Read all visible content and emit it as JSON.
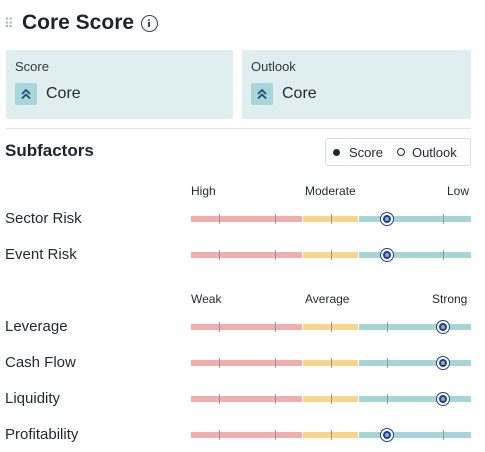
{
  "header": {
    "title": "Core Score"
  },
  "cards": {
    "score": {
      "label": "Score",
      "value": "Core",
      "icon": "double-chevron-up-icon"
    },
    "outlook": {
      "label": "Outlook",
      "value": "Core",
      "icon": "double-chevron-up-icon"
    }
  },
  "subfactors": {
    "title": "Subfactors",
    "legend": {
      "score": "Score",
      "outlook": "Outlook"
    },
    "risk_scale": {
      "left": "High",
      "middle": "Moderate",
      "right": "Low"
    },
    "strength_scale": {
      "left": "Weak",
      "middle": "Average",
      "right": "Strong"
    },
    "risk_rows": [
      {
        "label": "Sector Risk",
        "position": 0.7
      },
      {
        "label": "Event Risk",
        "position": 0.7
      }
    ],
    "strength_rows": [
      {
        "label": "Leverage",
        "position": 0.9
      },
      {
        "label": "Cash Flow",
        "position": 0.9
      },
      {
        "label": "Liquidity",
        "position": 0.9
      },
      {
        "label": "Profitability",
        "position": 0.7
      }
    ]
  },
  "colors": {
    "weak": "#f1aeae",
    "average": "#f9d58c",
    "strong": "#a6d5d5",
    "marker": "#23418a"
  }
}
